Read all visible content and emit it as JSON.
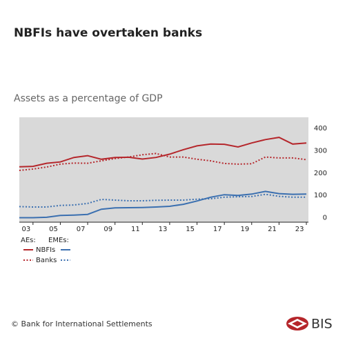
{
  "chart_data": {
    "type": "line",
    "title": "NBFIs have overtaken banks",
    "subtitle": "Assets as a percentage of GDP",
    "x": [
      2002,
      2003,
      2004,
      2005,
      2006,
      2007,
      2008,
      2009,
      2010,
      2011,
      2012,
      2013,
      2014,
      2015,
      2016,
      2017,
      2018,
      2019,
      2020,
      2021,
      2022,
      2023
    ],
    "xlim": [
      2002,
      2023
    ],
    "xticks": [
      {
        "value": 2003,
        "label": "03"
      },
      {
        "value": 2005,
        "label": "05"
      },
      {
        "value": 2007,
        "label": "07"
      },
      {
        "value": 2009,
        "label": "09"
      },
      {
        "value": 2011,
        "label": "11"
      },
      {
        "value": 2013,
        "label": "13"
      },
      {
        "value": 2015,
        "label": "15"
      },
      {
        "value": 2017,
        "label": "17"
      },
      {
        "value": 2019,
        "label": "19"
      },
      {
        "value": 2021,
        "label": "21"
      },
      {
        "value": 2023,
        "label": "23"
      }
    ],
    "ylim": [
      -20,
      450
    ],
    "yticks": [
      0,
      100,
      200,
      300,
      400
    ],
    "grid": false,
    "legend": {
      "groups": [
        "AEs:",
        "EMEs:"
      ],
      "rows": [
        "NBFIs",
        "Banks"
      ]
    },
    "series": [
      {
        "group": 0,
        "row": 0,
        "color": "#b5262b",
        "dashed": false,
        "values": [
          228,
          230,
          244,
          250,
          270,
          278,
          262,
          270,
          271,
          263,
          270,
          285,
          305,
          322,
          330,
          329,
          317,
          335,
          350,
          360,
          330,
          335
        ]
      },
      {
        "group": 0,
        "row": 1,
        "color": "#b5262b",
        "dashed": true,
        "values": [
          212,
          218,
          227,
          240,
          245,
          244,
          255,
          265,
          272,
          282,
          288,
          272,
          272,
          262,
          255,
          243,
          240,
          242,
          272,
          268,
          268,
          260
        ]
      },
      {
        "group": 1,
        "row": 0,
        "color": "#3a6fb0",
        "dashed": false,
        "values": [
          0,
          0,
          2,
          10,
          12,
          15,
          38,
          44,
          45,
          46,
          48,
          51,
          60,
          75,
          92,
          103,
          100,
          106,
          118,
          108,
          105,
          106
        ]
      },
      {
        "group": 1,
        "row": 1,
        "color": "#3a6fb0",
        "dashed": true,
        "values": [
          50,
          48,
          48,
          55,
          57,
          64,
          82,
          79,
          76,
          76,
          78,
          79,
          79,
          83,
          85,
          92,
          94,
          95,
          105,
          96,
          92,
          92
        ]
      }
    ]
  },
  "footer": {
    "copyright": "© Bank for International Settlements",
    "logo": "BIS"
  }
}
